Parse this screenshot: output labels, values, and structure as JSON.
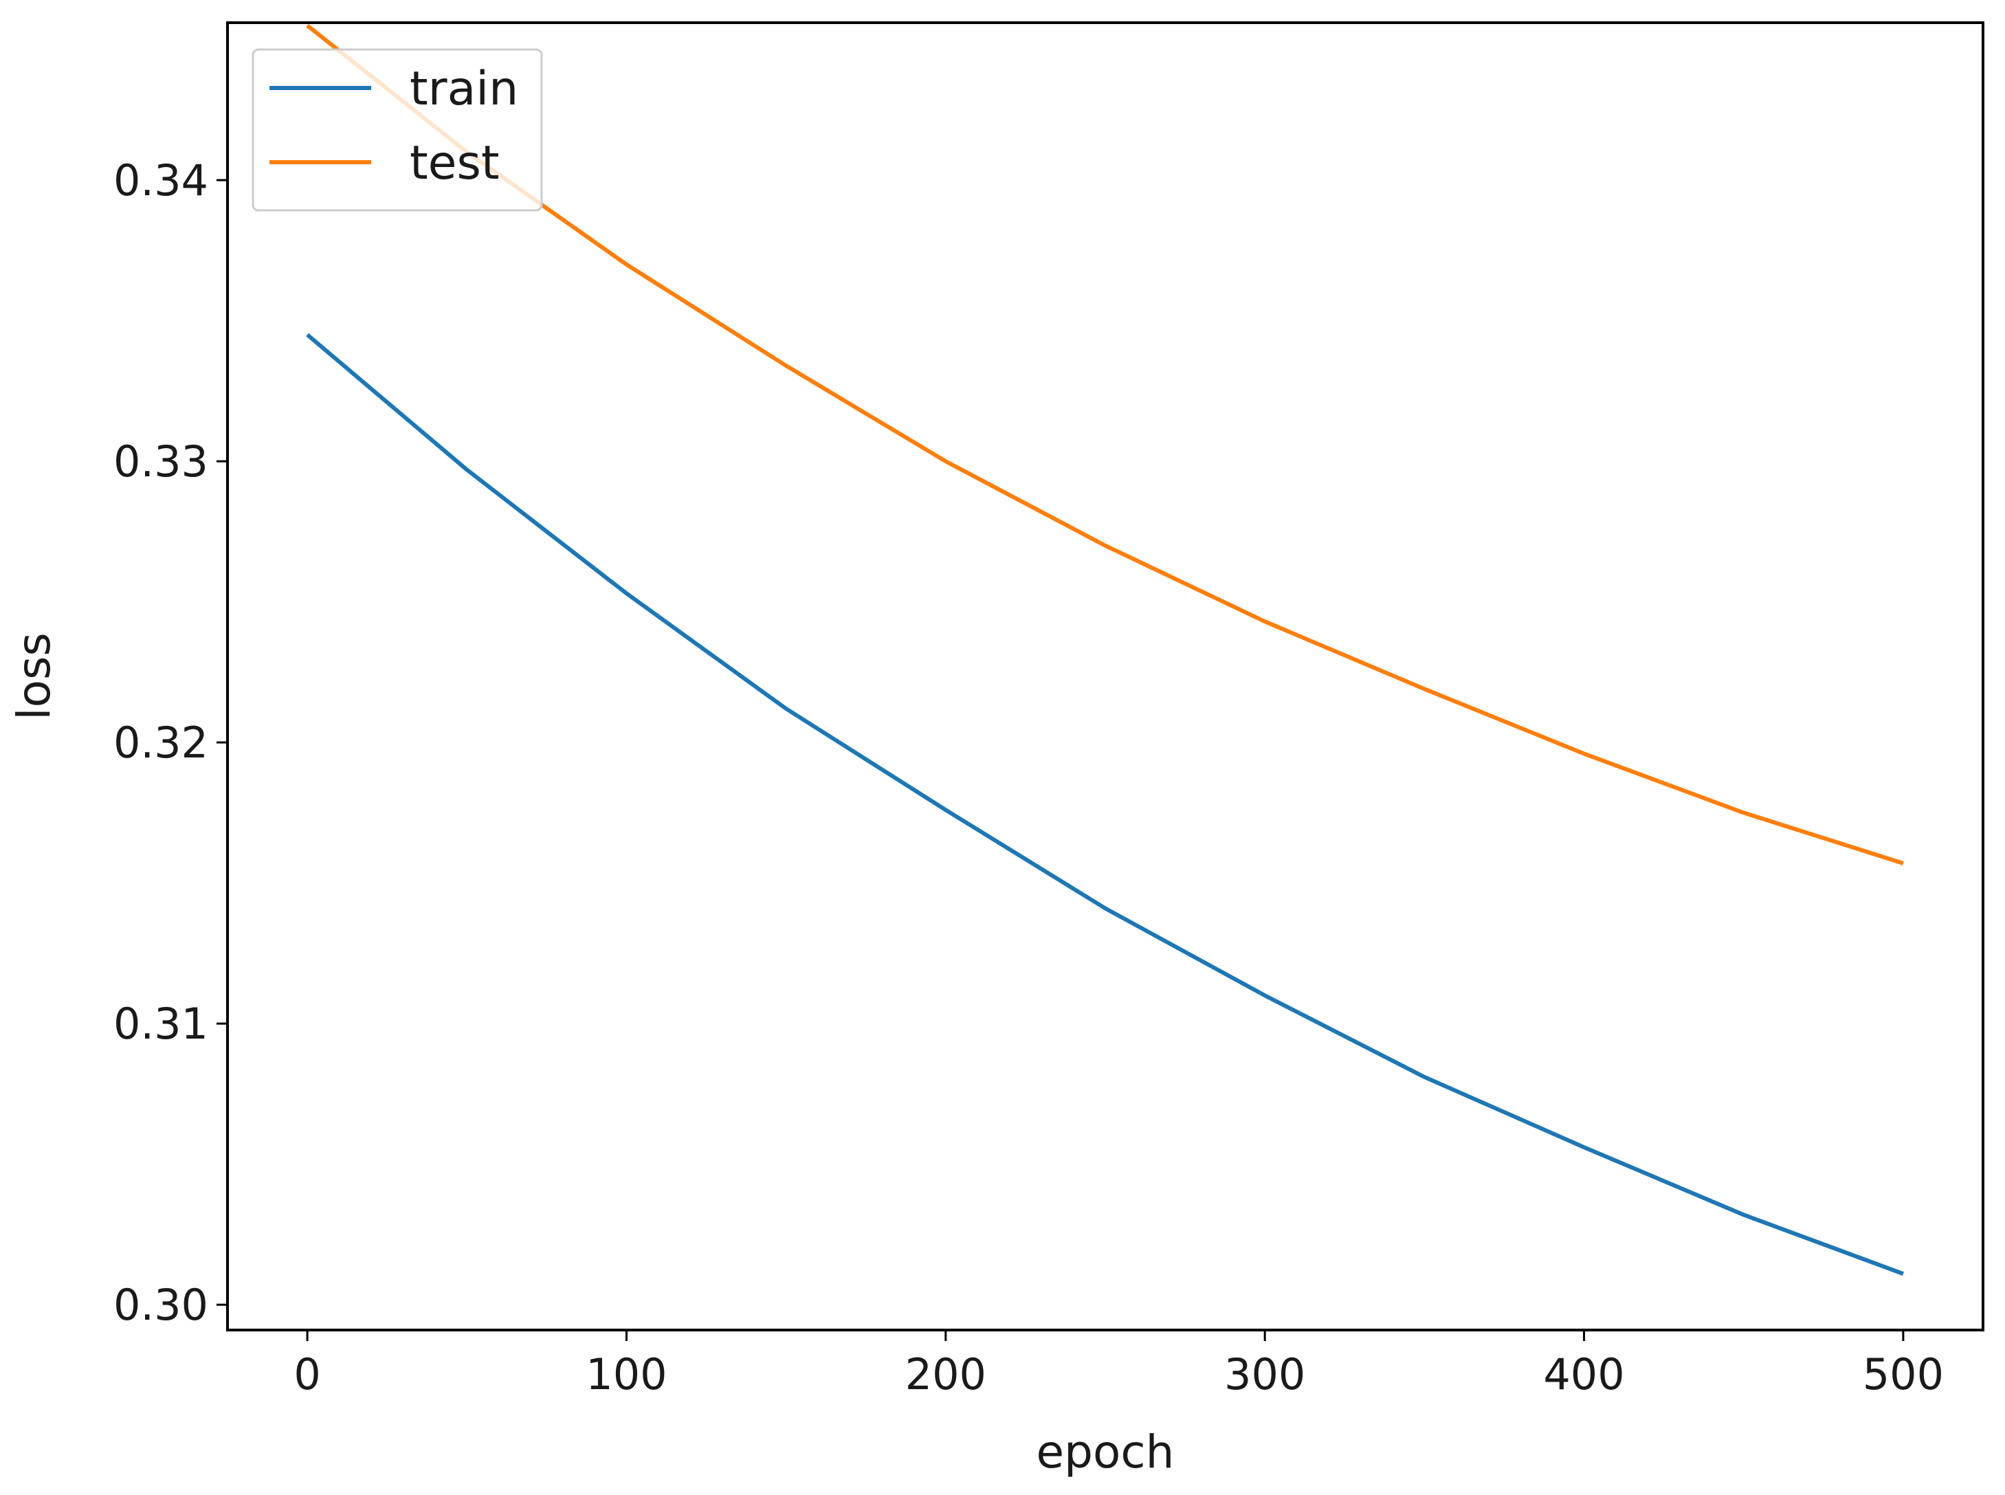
{
  "chart_data": {
    "type": "line",
    "xlabel": "epoch",
    "ylabel": "loss",
    "xlim": [
      -25,
      525
    ],
    "ylim": [
      0.2991,
      0.3456
    ],
    "xticks": [
      0,
      100,
      200,
      300,
      400,
      500
    ],
    "yticks": [
      0.3,
      0.31,
      0.32,
      0.33,
      0.34
    ],
    "ytick_labels": [
      "0.30",
      "0.31",
      "0.32",
      "0.33",
      "0.34"
    ],
    "xtick_labels": [
      "0",
      "100",
      "200",
      "300",
      "400",
      "500"
    ],
    "grid": false,
    "legend": "top-left",
    "x": [
      0,
      50,
      100,
      150,
      200,
      250,
      300,
      350,
      400,
      450,
      500
    ],
    "series": [
      {
        "name": "train",
        "color": "#1f77b4",
        "values": [
          0.3345,
          0.3297,
          0.3253,
          0.3212,
          0.3176,
          0.3141,
          0.311,
          0.3081,
          0.3056,
          0.3032,
          0.3011
        ]
      },
      {
        "name": "test",
        "color": "#ff7f0e",
        "values": [
          0.3455,
          0.341,
          0.337,
          0.3334,
          0.33,
          0.327,
          0.3243,
          0.3219,
          0.3196,
          0.3175,
          0.3157
        ]
      }
    ]
  }
}
